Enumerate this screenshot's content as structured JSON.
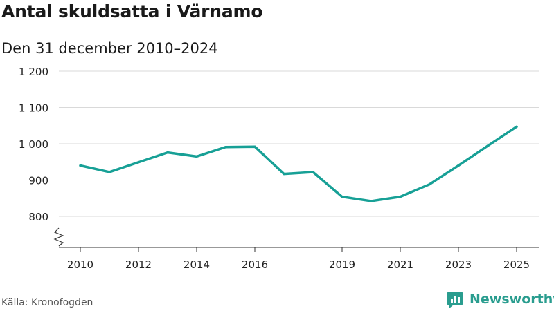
{
  "colors": {
    "line": "#17a096",
    "grid": "#d9d9d9",
    "axis": "#333333",
    "brand": "#2a9d8f"
  },
  "source": "Källa: Kronofogden",
  "brand": {
    "name": "Newsworthy",
    "icon": "newsworthy-logo-icon"
  },
  "chart_data": {
    "type": "line",
    "title": "Antal skuldsatta i Värnamo",
    "subtitle": "Den 31 december 2010–2024",
    "xlabel": "",
    "ylabel": "",
    "x": [
      2010,
      2011,
      2012,
      2013,
      2014,
      2015,
      2016,
      2017,
      2018,
      2019,
      2020,
      2021,
      2022,
      2023,
      2024,
      2025
    ],
    "series": [
      {
        "name": "Antal skuldsatta",
        "values": [
          940,
          922,
          949,
          976,
          965,
          991,
          992,
          917,
          922,
          854,
          842,
          854,
          888,
          940,
          994,
          1047
        ]
      }
    ],
    "xticks": [
      2010,
      2012,
      2014,
      2016,
      2019,
      2021,
      2023,
      2025
    ],
    "xtick_labels": [
      "2010",
      "2012",
      "2014",
      "2016",
      "2019",
      "2021",
      "2023",
      "2025"
    ],
    "yticks": [
      800,
      900,
      1000,
      1100,
      1200
    ],
    "ytick_labels": [
      "800",
      "900",
      "1 000",
      "1 100",
      "1 200"
    ],
    "ylim": [
      760,
      1200
    ],
    "xlim": [
      2010,
      2025
    ],
    "axis_break": true,
    "grid": true
  }
}
